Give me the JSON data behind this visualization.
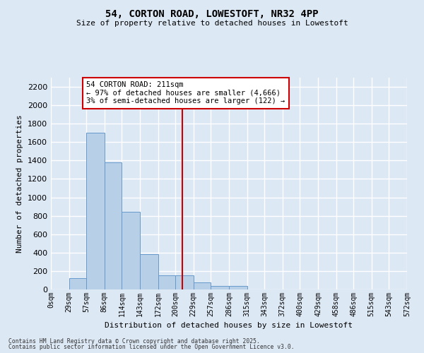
{
  "title_line1": "54, CORTON ROAD, LOWESTOFT, NR32 4PP",
  "title_line2": "Size of property relative to detached houses in Lowestoft",
  "xlabel": "Distribution of detached houses by size in Lowestoft",
  "ylabel": "Number of detached properties",
  "bar_color": "#b8cfe8",
  "bar_edge_color": "#6699cc",
  "background_color": "#dde8f5",
  "grid_color": "#ffffff",
  "property_size": 211,
  "annotation_text": "54 CORTON ROAD: 211sqm\n← 97% of detached houses are smaller (4,666)\n3% of semi-detached houses are larger (122) →",
  "annotation_box_color": "#ffffff",
  "annotation_box_edge": "#cc0000",
  "vline_color": "#cc0000",
  "footer_line1": "Contains HM Land Registry data © Crown copyright and database right 2025.",
  "footer_line2": "Contains public sector information licensed under the Open Government Licence v3.0.",
  "bin_edges": [
    0,
    29,
    57,
    86,
    114,
    143,
    172,
    200,
    229,
    257,
    286,
    315,
    343,
    372,
    400,
    429,
    458,
    486,
    515,
    543,
    572
  ],
  "bin_labels": [
    "0sqm",
    "29sqm",
    "57sqm",
    "86sqm",
    "114sqm",
    "143sqm",
    "172sqm",
    "200sqm",
    "229sqm",
    "257sqm",
    "286sqm",
    "315sqm",
    "343sqm",
    "372sqm",
    "400sqm",
    "429sqm",
    "458sqm",
    "486sqm",
    "515sqm",
    "543sqm",
    "572sqm"
  ],
  "counts": [
    0,
    120,
    1700,
    1380,
    840,
    380,
    150,
    150,
    75,
    40,
    40,
    0,
    0,
    0,
    0,
    0,
    0,
    0,
    0,
    0
  ],
  "ylim": [
    0,
    2300
  ],
  "yticks": [
    0,
    200,
    400,
    600,
    800,
    1000,
    1200,
    1400,
    1600,
    1800,
    2000,
    2200
  ]
}
